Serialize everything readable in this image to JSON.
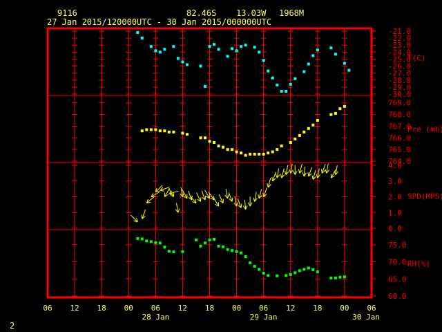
{
  "header": {
    "station_id": "9116",
    "latitude": "82.46S",
    "longitude": "13.03W",
    "elevation": "1968M",
    "time_range": "27 Jan 2015/120000UTC - 30 Jan 2015/000000UTC"
  },
  "footer_label": "2",
  "colors": {
    "frame": "#ff0000",
    "grid": "#ff0000",
    "text": "#ffff66",
    "temperature": "#00ffff",
    "pressure": "#ffff00",
    "wind": "#ffff00",
    "humidity": "#00ff00"
  },
  "chart_data": {
    "type": "scatter",
    "x_axis": {
      "hour_labels": [
        "06",
        "12",
        "18",
        "00",
        "06",
        "12",
        "18",
        "00",
        "06",
        "12",
        "18",
        "00",
        "06"
      ],
      "date_labels": [
        "28 Jan",
        "29 Jan",
        "30 Jan"
      ],
      "range_hours": [
        -6,
        66
      ]
    },
    "panels": [
      {
        "name": "temperature",
        "ylabel": "T(C)",
        "tick_labels": [
          "-21.0",
          "-22.0",
          "-23.0",
          "-24.0",
          "-25.0",
          "-26.0",
          "-27.0",
          "-28.0",
          "-29.0",
          "-30.0"
        ],
        "ylim": [
          -30.0,
          -21.0
        ],
        "color": "#00ffff",
        "points": [
          [
            14,
            -21.2
          ],
          [
            15,
            -22.0
          ],
          [
            17,
            -23.2
          ],
          [
            18,
            -23.8
          ],
          [
            19,
            -24.0
          ],
          [
            20,
            -23.6
          ],
          [
            22,
            -23.2
          ],
          [
            23,
            -24.9
          ],
          [
            24,
            -25.4
          ],
          [
            25,
            -25.8
          ],
          [
            28,
            -26.0
          ],
          [
            29,
            -28.9
          ],
          [
            30,
            -23.2
          ],
          [
            31,
            -22.9
          ],
          [
            32,
            -23.6
          ],
          [
            34,
            -24.6
          ],
          [
            35,
            -23.5
          ],
          [
            36,
            -23.8
          ],
          [
            37,
            -23.2
          ],
          [
            38,
            -23.0
          ],
          [
            40,
            -23.3
          ],
          [
            41,
            -24.0
          ],
          [
            42,
            -25.2
          ],
          [
            43,
            -26.7
          ],
          [
            44,
            -27.7
          ],
          [
            45,
            -28.7
          ],
          [
            46,
            -29.6
          ],
          [
            47,
            -29.6
          ],
          [
            48,
            -28.6
          ],
          [
            49,
            -27.8
          ],
          [
            51,
            -26.8
          ],
          [
            52,
            -25.7
          ],
          [
            53,
            -24.5
          ],
          [
            54,
            -23.7
          ],
          [
            57,
            -23.4
          ],
          [
            58,
            -24.3
          ],
          [
            60,
            -25.6
          ],
          [
            61,
            -26.6
          ]
        ]
      },
      {
        "name": "pressure",
        "ylabel": "Pre (mb)",
        "tick_labels": [
          "769.0",
          "768.0",
          "767.0",
          "766.0",
          "765.0",
          "764.0"
        ],
        "ylim": [
          764.0,
          769.4
        ],
        "color": "#ffff00",
        "points": [
          [
            15,
            766.6
          ],
          [
            16,
            766.7
          ],
          [
            17,
            766.7
          ],
          [
            18,
            766.7
          ],
          [
            19,
            766.6
          ],
          [
            20,
            766.6
          ],
          [
            21,
            766.5
          ],
          [
            22,
            766.5
          ],
          [
            24,
            766.4
          ],
          [
            25,
            766.3
          ],
          [
            28,
            766.0
          ],
          [
            29,
            766.0
          ],
          [
            30,
            765.7
          ],
          [
            31,
            765.6
          ],
          [
            32,
            765.3
          ],
          [
            33,
            765.2
          ],
          [
            34,
            765.0
          ],
          [
            35,
            765.0
          ],
          [
            36,
            764.8
          ],
          [
            37,
            764.7
          ],
          [
            38,
            764.5
          ],
          [
            39,
            764.6
          ],
          [
            40,
            764.6
          ],
          [
            41,
            764.6
          ],
          [
            42,
            764.6
          ],
          [
            43,
            764.7
          ],
          [
            44,
            764.8
          ],
          [
            45,
            765.0
          ],
          [
            46,
            765.3
          ],
          [
            48,
            765.6
          ],
          [
            49,
            765.9
          ],
          [
            50,
            766.2
          ],
          [
            51,
            766.5
          ],
          [
            52,
            766.8
          ],
          [
            53,
            767.1
          ],
          [
            54,
            767.5
          ],
          [
            57,
            768.0
          ],
          [
            58,
            768.1
          ],
          [
            59,
            768.5
          ],
          [
            60,
            768.7
          ]
        ]
      },
      {
        "name": "wind",
        "ylabel": "SPD(MPS)",
        "tick_labels": [
          "4.0",
          "3.0",
          "2.0",
          "1.0",
          "0.0"
        ],
        "ylim": [
          0.0,
          4.0
        ],
        "color": "#ffff00",
        "barbs": [
          [
            14,
            0.4,
            135
          ],
          [
            15,
            0.6,
            70
          ],
          [
            16,
            1.6,
            40
          ],
          [
            17,
            2.0,
            30
          ],
          [
            18,
            2.3,
            45
          ],
          [
            19,
            2.4,
            20
          ],
          [
            20,
            2.0,
            60
          ],
          [
            21,
            2.2,
            15
          ],
          [
            22,
            2.0,
            120
          ],
          [
            23,
            1.0,
            100
          ],
          [
            24,
            2.0,
            100
          ],
          [
            25,
            1.9,
            120
          ],
          [
            26,
            1.8,
            110
          ],
          [
            27,
            1.6,
            130
          ],
          [
            28,
            1.7,
            115
          ],
          [
            29,
            1.8,
            110
          ],
          [
            30,
            1.9,
            120
          ],
          [
            31,
            1.8,
            125
          ],
          [
            32,
            1.4,
            120
          ],
          [
            33,
            1.6,
            115
          ],
          [
            34,
            1.9,
            100
          ],
          [
            35,
            1.7,
            110
          ],
          [
            36,
            1.4,
            100
          ],
          [
            37,
            1.3,
            110
          ],
          [
            38,
            1.2,
            95
          ],
          [
            39,
            1.4,
            90
          ],
          [
            40,
            1.7,
            80
          ],
          [
            41,
            1.9,
            75
          ],
          [
            42,
            2.0,
            70
          ],
          [
            43,
            2.6,
            75
          ],
          [
            44,
            3.0,
            70
          ],
          [
            45,
            3.2,
            80
          ],
          [
            46,
            3.2,
            75
          ],
          [
            47,
            3.4,
            80
          ],
          [
            48,
            3.5,
            80
          ],
          [
            49,
            3.4,
            90
          ],
          [
            50,
            3.5,
            75
          ],
          [
            51,
            3.3,
            85
          ],
          [
            52,
            3.3,
            70
          ],
          [
            53,
            3.1,
            75
          ],
          [
            54,
            3.2,
            80
          ],
          [
            55,
            3.5,
            70
          ],
          [
            56,
            3.5,
            80
          ],
          [
            57,
            3.2,
            60
          ],
          [
            58,
            3.4,
            80
          ]
        ]
      },
      {
        "name": "humidity",
        "ylabel": "RH(%)",
        "tick_labels": [
          "75.0",
          "70.0",
          "65.0",
          "60.0"
        ],
        "ylim": [
          60.0,
          78.6
        ],
        "color": "#00ff00",
        "points": [
          [
            14,
            76.8
          ],
          [
            15,
            76.7
          ],
          [
            16,
            76.1
          ],
          [
            17,
            75.9
          ],
          [
            18,
            75.6
          ],
          [
            19,
            75.5
          ],
          [
            20,
            74.3
          ],
          [
            21,
            73.1
          ],
          [
            22,
            72.9
          ],
          [
            24,
            73.0
          ],
          [
            27,
            76.4
          ],
          [
            28,
            74.6
          ],
          [
            29,
            75.5
          ],
          [
            30,
            76.4
          ],
          [
            31,
            76.6
          ],
          [
            32,
            74.6
          ],
          [
            33,
            74.4
          ],
          [
            34,
            73.6
          ],
          [
            35,
            73.3
          ],
          [
            36,
            73.0
          ],
          [
            37,
            72.6
          ],
          [
            38,
            71.5
          ],
          [
            39,
            69.7
          ],
          [
            40,
            68.7
          ],
          [
            41,
            67.8
          ],
          [
            42,
            66.7
          ],
          [
            43,
            66.0
          ],
          [
            45,
            65.9
          ],
          [
            47,
            66.0
          ],
          [
            48,
            66.3
          ],
          [
            49,
            66.8
          ],
          [
            50,
            67.4
          ],
          [
            51,
            67.8
          ],
          [
            52,
            68.2
          ],
          [
            53,
            67.7
          ],
          [
            54,
            67.1
          ],
          [
            57,
            65.3
          ],
          [
            58,
            65.3
          ],
          [
            59,
            65.5
          ],
          [
            60,
            65.6
          ]
        ]
      }
    ]
  }
}
